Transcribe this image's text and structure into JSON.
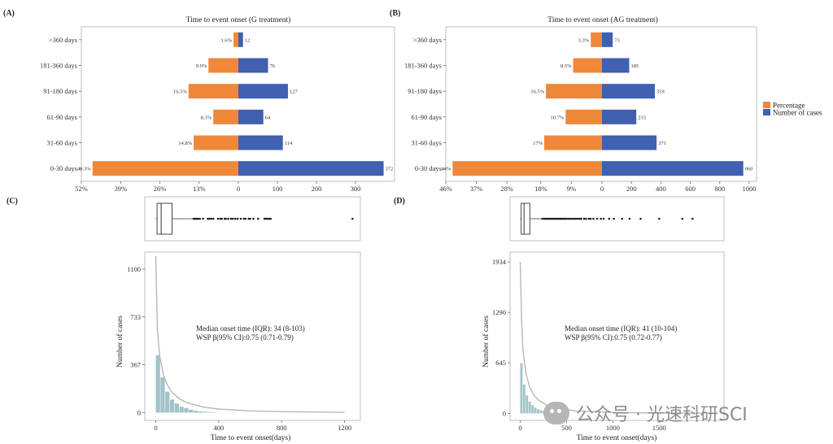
{
  "chart_data": [
    {
      "panel": "(A)",
      "type": "bar",
      "title": "Time to event onset (G treatment)",
      "categories": [
        ">360 days",
        "181-360 days",
        "91-180 days",
        "61-90 days",
        "31-60 days",
        "0-30 days"
      ],
      "series": [
        {
          "name": "Percentage",
          "values": [
            1.6,
            9.9,
            16.5,
            8.3,
            14.8,
            48.3
          ],
          "labels": [
            "1.6%",
            "9.9%",
            "16.5%",
            "8.3%",
            "14.8%",
            "48.3%"
          ]
        },
        {
          "name": "Number of cases",
          "values": [
            12,
            76,
            127,
            64,
            114,
            372
          ],
          "labels": [
            "12",
            "76",
            "127",
            "64",
            "114",
            "372"
          ]
        }
      ],
      "left_axis": {
        "max": 52,
        "ticks": [
          52,
          39,
          26,
          13,
          0
        ],
        "tick_labels": [
          "52%",
          "39%",
          "26%",
          "13%",
          "0"
        ]
      },
      "right_axis": {
        "max": 400,
        "ticks": [
          100,
          200,
          300
        ],
        "tick_labels": [
          "100",
          "200",
          "300"
        ]
      }
    },
    {
      "panel": "(B)",
      "type": "bar",
      "title": "Time to event onset (AG treatment)",
      "categories": [
        ">360 days",
        "181-360 days",
        "91-180 days",
        "61-90 days",
        "31-60 days",
        "0-30 days"
      ],
      "series": [
        {
          "name": "Percentage",
          "values": [
            3.3,
            8.5,
            16.5,
            10.7,
            17,
            44
          ],
          "labels": [
            "3.3%",
            "8.5%",
            "16.5%",
            "10.7%",
            "17%",
            "44%"
          ]
        },
        {
          "name": "Number of cases",
          "values": [
            73,
            185,
            359,
            233,
            371,
            960
          ],
          "labels": [
            "73",
            "185",
            "359",
            "233",
            "371",
            "960"
          ]
        }
      ],
      "left_axis": {
        "max": 46,
        "ticks": [
          46,
          37,
          28,
          18,
          9,
          0
        ],
        "tick_labels": [
          "46%",
          "37%",
          "28%",
          "18%",
          "9%",
          "0"
        ]
      },
      "right_axis": {
        "max": 1050,
        "ticks": [
          200,
          400,
          600,
          800,
          1000
        ],
        "tick_labels": [
          "200",
          "400",
          "600",
          "800",
          "1000"
        ]
      }
    },
    {
      "panel": "(C)",
      "type": "bar",
      "xlabel": "Time to event onset(days)",
      "ylabel": "Number of cases",
      "xlim": [
        -70,
        1300
      ],
      "ylim": [
        -60,
        1230
      ],
      "xticks": [
        0,
        400,
        800,
        1200
      ],
      "yticks": [
        0,
        367,
        733,
        1100
      ],
      "bin_width": 30,
      "bins_start": [
        0,
        30,
        60,
        90,
        120,
        150,
        180,
        210,
        240,
        270,
        300,
        330,
        360
      ],
      "counts": [
        440,
        270,
        160,
        100,
        70,
        45,
        35,
        22,
        15,
        10,
        7,
        5,
        3
      ],
      "fit_curve": {
        "x": [
          0,
          10,
          25,
          50,
          75,
          100,
          150,
          200,
          300,
          400,
          600,
          800,
          1200
        ],
        "y": [
          1200,
          640,
          430,
          280,
          210,
          160,
          105,
          75,
          42,
          27,
          13,
          7,
          2
        ]
      },
      "boxplot": {
        "q1": 8,
        "median": 34,
        "q3": 103,
        "outliers": [
          240,
          250,
          258,
          268,
          280,
          300,
          330,
          340,
          352,
          365,
          395,
          410,
          420,
          438,
          445,
          460,
          478,
          490,
          505,
          520,
          540,
          560,
          570,
          590,
          600,
          620,
          650,
          690,
          700,
          710,
          720,
          730,
          1250
        ]
      },
      "annotation": [
        "Median onset time (IQR): 34 (8-103)",
        "WSP β(95% CI):0.75 (0.71-0.79)"
      ]
    },
    {
      "panel": "(D)",
      "type": "bar",
      "xlabel": "Time to event onset(days)",
      "ylabel": "Number of cases",
      "xlim": [
        -110,
        2200
      ],
      "ylim": [
        -90,
        2060
      ],
      "xticks": [
        0,
        500,
        1000,
        1500
      ],
      "yticks": [
        0,
        645,
        1290,
        1934
      ],
      "bin_width": 30,
      "bins_start": [
        0,
        30,
        60,
        90,
        120,
        150,
        180,
        210,
        240,
        270,
        300,
        330,
        360
      ],
      "counts": [
        640,
        370,
        230,
        150,
        105,
        75,
        55,
        40,
        30,
        22,
        15,
        10,
        7
      ],
      "fit_curve": {
        "x": [
          0,
          15,
          30,
          60,
          100,
          150,
          200,
          300,
          400,
          600,
          1000,
          1500,
          2000
        ],
        "y": [
          1934,
          1200,
          800,
          520,
          340,
          230,
          165,
          100,
          65,
          32,
          12,
          5,
          2
        ]
      },
      "boxplot": {
        "q1": 10,
        "median": 41,
        "q3": 104,
        "outliers": [
          240,
          260,
          275,
          290,
          305,
          320,
          335,
          350,
          365,
          380,
          395,
          410,
          425,
          440,
          455,
          470,
          485,
          500,
          520,
          540,
          560,
          580,
          600,
          620,
          640,
          660,
          690,
          710,
          740,
          760,
          790,
          830,
          870,
          900,
          960,
          1010,
          1100,
          1180,
          1300,
          1500,
          1750,
          1860
        ]
      },
      "annotation": [
        "Median onset time (IQR): 41 (10-104)",
        "WSP β(95% CI):0.75 (0.72-0.77)"
      ]
    }
  ],
  "panel_labels": {
    "a": "(A)",
    "b": "(B)",
    "c": "(C)",
    "d": "(D)"
  },
  "legend": {
    "items": [
      {
        "label": "Percentage",
        "color": "#f0883a"
      },
      {
        "label": "Number of cases",
        "color": "#4060b0"
      }
    ]
  },
  "colors": {
    "percentage": "#f0883a",
    "cases": "#4060b0",
    "histogram": "#a3c3c8",
    "fit_line": "#b8b8b8"
  },
  "watermark": "公众号 · 光速科研SCI"
}
